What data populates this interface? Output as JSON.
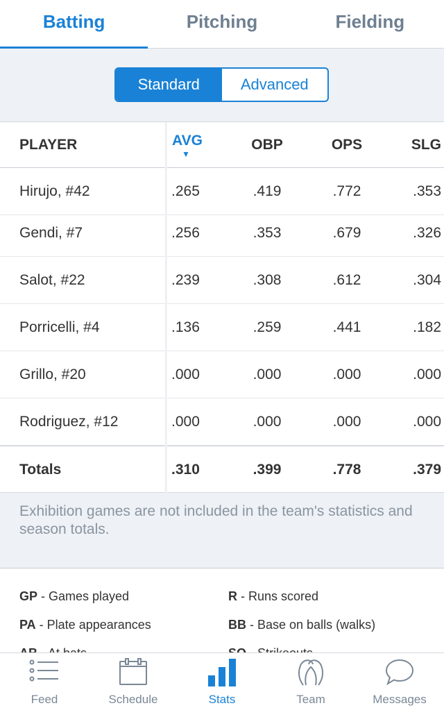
{
  "top_tabs": [
    {
      "label": "Batting",
      "active": true
    },
    {
      "label": "Pitching",
      "active": false
    },
    {
      "label": "Fielding",
      "active": false
    }
  ],
  "segments": [
    {
      "label": "Standard",
      "active": true
    },
    {
      "label": "Advanced",
      "active": false
    }
  ],
  "table": {
    "headers": {
      "player": "PLAYER",
      "avg": "AVG",
      "obp": "OBP",
      "ops": "OPS",
      "slg": "SLG"
    },
    "sort_indicator": "▼",
    "rows": [
      {
        "player": "Hirujo, #42",
        "avg": ".265",
        "obp": ".419",
        "ops": ".772",
        "slg": ".353"
      },
      {
        "player": "Gendi, #7",
        "avg": ".256",
        "obp": ".353",
        "ops": ".679",
        "slg": ".326"
      },
      {
        "player": "Salot, #22",
        "avg": ".239",
        "obp": ".308",
        "ops": ".612",
        "slg": ".304"
      },
      {
        "player": "Porricelli, #4",
        "avg": ".136",
        "obp": ".259",
        "ops": ".441",
        "slg": ".182"
      },
      {
        "player": "Grillo, #20",
        "avg": ".000",
        "obp": ".000",
        "ops": ".000",
        "slg": ".000"
      },
      {
        "player": "Rodriguez, #12",
        "avg": ".000",
        "obp": ".000",
        "ops": ".000",
        "slg": ".000"
      }
    ],
    "totals": {
      "player": "Totals",
      "avg": ".310",
      "obp": ".399",
      "ops": ".778",
      "slg": ".379"
    }
  },
  "note": "Exhibition games are not included in the team's statistics and season totals.",
  "legend": [
    {
      "abbr": "GP",
      "desc": " - Games played"
    },
    {
      "abbr": "R",
      "desc": " - Runs scored"
    },
    {
      "abbr": "PA",
      "desc": " - Plate appearances"
    },
    {
      "abbr": "BB",
      "desc": " - Base on balls (walks)"
    },
    {
      "abbr": "AB",
      "desc": " - At bats"
    },
    {
      "abbr": "SO",
      "desc": " - Strikeouts"
    }
  ],
  "bottom_nav": [
    {
      "label": "Feed",
      "icon": "feed-list-icon",
      "active": false
    },
    {
      "label": "Schedule",
      "icon": "calendar-icon",
      "active": false
    },
    {
      "label": "Stats",
      "icon": "bar-chart-icon",
      "active": true
    },
    {
      "label": "Team",
      "icon": "team-icon",
      "active": false
    },
    {
      "label": "Messages",
      "icon": "chat-bubble-icon",
      "active": false
    }
  ],
  "colors": {
    "accent": "#1a82d6",
    "muted_text": "#8a95a1",
    "background": "#eef1f5"
  }
}
